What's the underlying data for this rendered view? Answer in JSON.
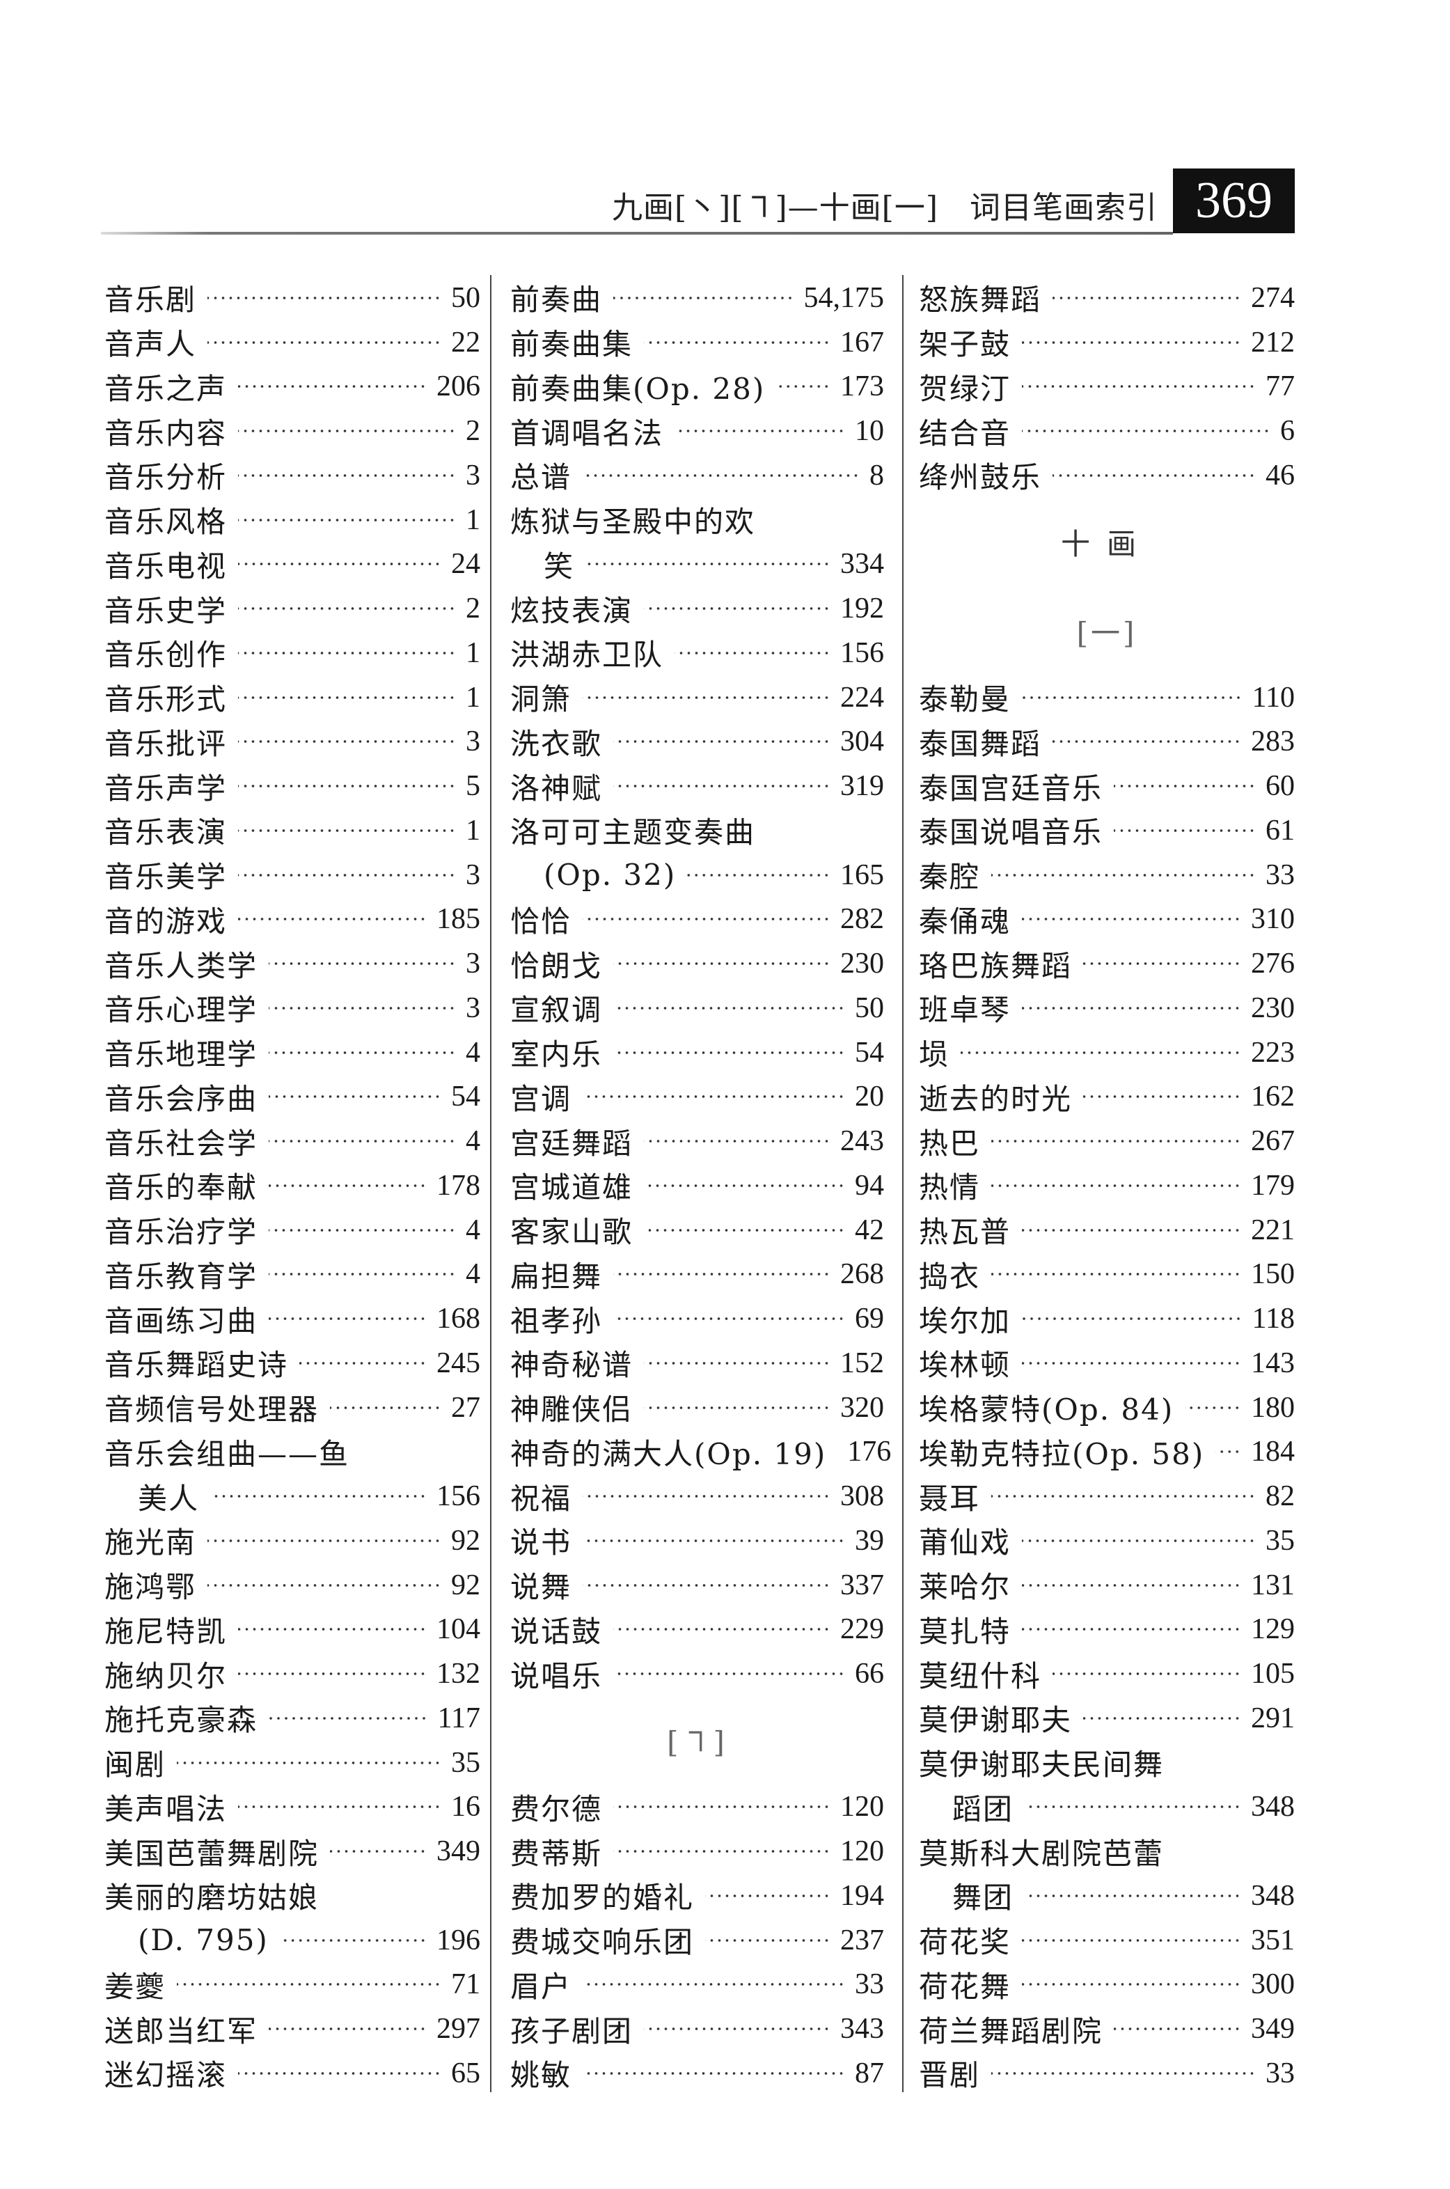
{
  "header": {
    "section_title": "九画[丶][㇕]—十画[一]　词目笔画索引",
    "page_number": "369"
  },
  "columns": [
    [
      {
        "name": "音乐剧",
        "page": "50"
      },
      {
        "name": "音声人",
        "page": "22"
      },
      {
        "name": "音乐之声",
        "page": "206"
      },
      {
        "name": "音乐内容",
        "page": "2"
      },
      {
        "name": "音乐分析",
        "page": "3"
      },
      {
        "name": "音乐风格",
        "page": "1"
      },
      {
        "name": "音乐电视",
        "page": "24"
      },
      {
        "name": "音乐史学",
        "page": "2"
      },
      {
        "name": "音乐创作",
        "page": "1"
      },
      {
        "name": "音乐形式",
        "page": "1"
      },
      {
        "name": "音乐批评",
        "page": "3"
      },
      {
        "name": "音乐声学",
        "page": "5"
      },
      {
        "name": "音乐表演",
        "page": "1"
      },
      {
        "name": "音乐美学",
        "page": "3"
      },
      {
        "name": "音的游戏",
        "page": "185"
      },
      {
        "name": "音乐人类学",
        "page": "3"
      },
      {
        "name": "音乐心理学",
        "page": "3"
      },
      {
        "name": "音乐地理学",
        "page": "4"
      },
      {
        "name": "音乐会序曲",
        "page": "54"
      },
      {
        "name": "音乐社会学",
        "page": "4"
      },
      {
        "name": "音乐的奉献",
        "page": "178"
      },
      {
        "name": "音乐治疗学",
        "page": "4"
      },
      {
        "name": "音乐教育学",
        "page": "4"
      },
      {
        "name": "音画练习曲",
        "page": "168"
      },
      {
        "name": "音乐舞蹈史诗",
        "page": "245"
      },
      {
        "name": "音频信号处理器",
        "page": "27"
      },
      {
        "name": "音乐会组曲——鱼",
        "page": ""
      },
      {
        "name": "美人",
        "page": "156",
        "cont": true
      },
      {
        "name": "施光南",
        "page": "92"
      },
      {
        "name": "施鸿鄂",
        "page": "92"
      },
      {
        "name": "施尼特凯",
        "page": "104"
      },
      {
        "name": "施纳贝尔",
        "page": "132"
      },
      {
        "name": "施托克豪森",
        "page": "117"
      },
      {
        "name": "闽剧",
        "page": "35"
      },
      {
        "name": "美声唱法",
        "page": "16"
      },
      {
        "name": "美国芭蕾舞剧院",
        "page": "349"
      },
      {
        "name": "美丽的磨坊姑娘",
        "page": ""
      },
      {
        "name": "(D. 795)",
        "page": "196",
        "cont": true
      },
      {
        "name": "姜夔",
        "page": "71"
      },
      {
        "name": "送郎当红军",
        "page": "297"
      },
      {
        "name": "迷幻摇滚",
        "page": "65"
      }
    ],
    [
      {
        "name": "前奏曲",
        "page": "54,175"
      },
      {
        "name": "前奏曲集",
        "page": "167"
      },
      {
        "name": "前奏曲集(Op. 28)",
        "page": "173"
      },
      {
        "name": "首调唱名法",
        "page": "10"
      },
      {
        "name": "总谱",
        "page": "8"
      },
      {
        "name": "炼狱与圣殿中的欢",
        "page": ""
      },
      {
        "name": "笑",
        "page": "334",
        "cont": true
      },
      {
        "name": "炫技表演",
        "page": "192"
      },
      {
        "name": "洪湖赤卫队",
        "page": "156"
      },
      {
        "name": "洞箫",
        "page": "224"
      },
      {
        "name": "洗衣歌",
        "page": "304"
      },
      {
        "name": "洛神赋",
        "page": "319"
      },
      {
        "name": "洛可可主题变奏曲",
        "page": ""
      },
      {
        "name": "(Op. 32)",
        "page": "165",
        "cont": true
      },
      {
        "name": "恰恰",
        "page": "282"
      },
      {
        "name": "恰朗戈",
        "page": "230"
      },
      {
        "name": "宣叙调",
        "page": "50"
      },
      {
        "name": "室内乐",
        "page": "54"
      },
      {
        "name": "宫调",
        "page": "20"
      },
      {
        "name": "宫廷舞蹈",
        "page": "243"
      },
      {
        "name": "宫城道雄",
        "page": "94"
      },
      {
        "name": "客家山歌",
        "page": "42"
      },
      {
        "name": "扁担舞",
        "page": "268"
      },
      {
        "name": "祖孝孙",
        "page": "69"
      },
      {
        "name": "神奇秘谱",
        "page": "152"
      },
      {
        "name": "神雕侠侣",
        "page": "320"
      },
      {
        "name": "神奇的满大人(Op. 19)",
        "page": "176"
      },
      {
        "name": "祝福",
        "page": "308"
      },
      {
        "name": "说书",
        "page": "39"
      },
      {
        "name": "说舞",
        "page": "337"
      },
      {
        "name": "说话鼓",
        "page": "229"
      },
      {
        "name": "说唱乐",
        "page": "66"
      },
      {
        "heading": "[㇕]",
        "bracket": true
      },
      {
        "name": "费尔德",
        "page": "120"
      },
      {
        "name": "费蒂斯",
        "page": "120"
      },
      {
        "name": "费加罗的婚礼",
        "page": "194"
      },
      {
        "name": "费城交响乐团",
        "page": "237"
      },
      {
        "name": "眉户",
        "page": "33"
      },
      {
        "name": "孩子剧团",
        "page": "343"
      },
      {
        "name": "姚敏",
        "page": "87"
      }
    ],
    [
      {
        "name": "怒族舞蹈",
        "page": "274"
      },
      {
        "name": "架子鼓",
        "page": "212"
      },
      {
        "name": "贺绿汀",
        "page": "77"
      },
      {
        "name": "结合音",
        "page": "6"
      },
      {
        "name": "绛州鼓乐",
        "page": "46"
      },
      {
        "heading": "十画"
      },
      {
        "heading": "[一]",
        "bracket": true
      },
      {
        "name": "泰勒曼",
        "page": "110"
      },
      {
        "name": "泰国舞蹈",
        "page": "283"
      },
      {
        "name": "泰国宫廷音乐",
        "page": "60"
      },
      {
        "name": "泰国说唱音乐",
        "page": "61"
      },
      {
        "name": "秦腔",
        "page": "33"
      },
      {
        "name": "秦俑魂",
        "page": "310"
      },
      {
        "name": "珞巴族舞蹈",
        "page": "276"
      },
      {
        "name": "班卓琴",
        "page": "230"
      },
      {
        "name": "埙",
        "page": "223"
      },
      {
        "name": "逝去的时光",
        "page": "162"
      },
      {
        "name": "热巴",
        "page": "267"
      },
      {
        "name": "热情",
        "page": "179"
      },
      {
        "name": "热瓦普",
        "page": "221"
      },
      {
        "name": "捣衣",
        "page": "150"
      },
      {
        "name": "埃尔加",
        "page": "118"
      },
      {
        "name": "埃林顿",
        "page": "143"
      },
      {
        "name": "埃格蒙特(Op. 84)",
        "page": "180"
      },
      {
        "name": "埃勒克特拉(Op. 58)",
        "page": "184"
      },
      {
        "name": "聂耳",
        "page": "82"
      },
      {
        "name": "莆仙戏",
        "page": "35"
      },
      {
        "name": "莱哈尔",
        "page": "131"
      },
      {
        "name": "莫扎特",
        "page": "129"
      },
      {
        "name": "莫纽什科",
        "page": "105"
      },
      {
        "name": "莫伊谢耶夫",
        "page": "291"
      },
      {
        "name": "莫伊谢耶夫民间舞",
        "page": ""
      },
      {
        "name": "蹈团",
        "page": "348",
        "cont": true
      },
      {
        "name": "莫斯科大剧院芭蕾",
        "page": ""
      },
      {
        "name": "舞团",
        "page": "348",
        "cont": true
      },
      {
        "name": "荷花奖",
        "page": "351"
      },
      {
        "name": "荷花舞",
        "page": "300"
      },
      {
        "name": "荷兰舞蹈剧院",
        "page": "349"
      },
      {
        "name": "晋剧",
        "page": "33"
      }
    ]
  ]
}
